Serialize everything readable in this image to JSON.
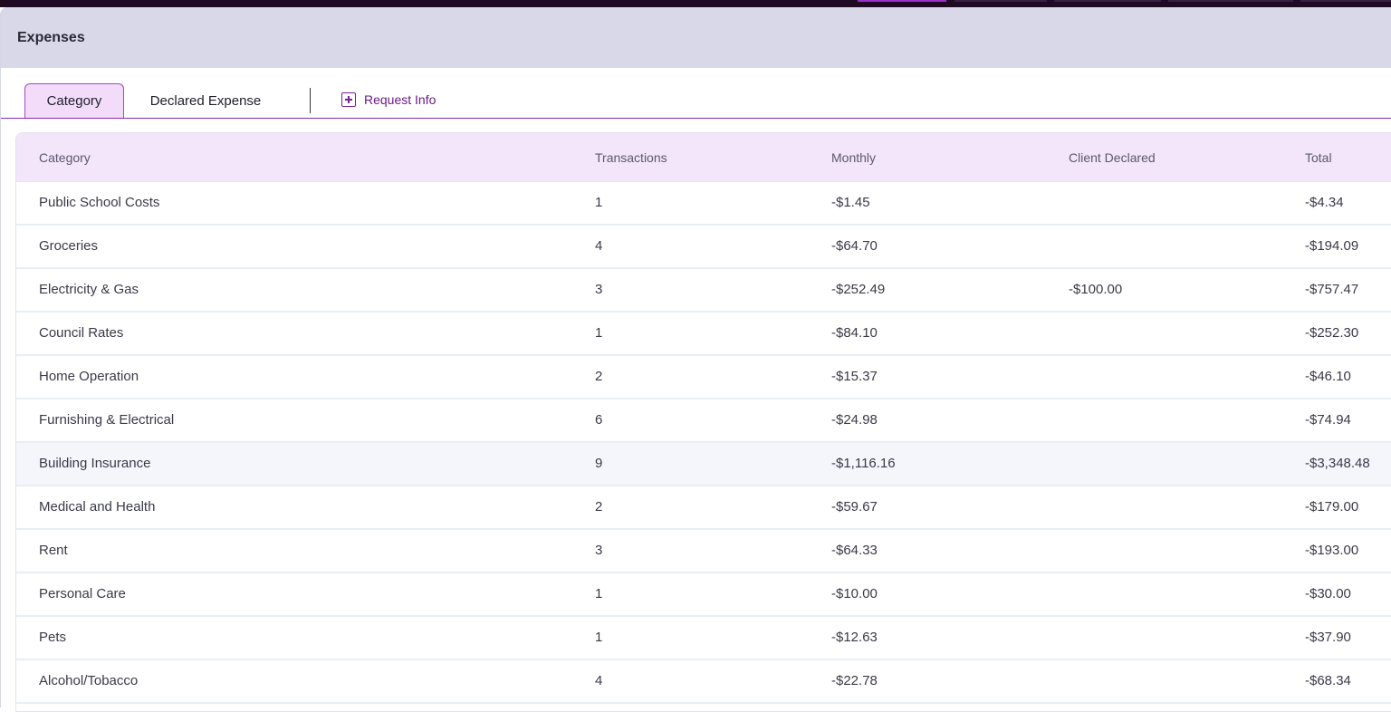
{
  "header": {
    "title": "Expenses"
  },
  "tabs": {
    "category": "Category",
    "declared": "Declared Expense",
    "request_info": "Request Info"
  },
  "table": {
    "columns": [
      "Category",
      "Transactions",
      "Monthly",
      "Client Declared",
      "Total"
    ],
    "rows": [
      [
        "Public School Costs",
        "1",
        "-$1.45",
        "",
        "-$4.34"
      ],
      [
        "Groceries",
        "4",
        "-$64.70",
        "",
        "-$194.09"
      ],
      [
        "Electricity & Gas",
        "3",
        "-$252.49",
        "-$100.00",
        "-$757.47"
      ],
      [
        "Council Rates",
        "1",
        "-$84.10",
        "",
        "-$252.30"
      ],
      [
        "Home Operation",
        "2",
        "-$15.37",
        "",
        "-$46.10"
      ],
      [
        "Furnishing & Electrical",
        "6",
        "-$24.98",
        "",
        "-$74.94"
      ],
      [
        "Building Insurance",
        "9",
        "-$1,116.16",
        "",
        "-$3,348.48"
      ],
      [
        "Medical and Health",
        "2",
        "-$59.67",
        "",
        "-$179.00"
      ],
      [
        "Rent",
        "3",
        "-$64.33",
        "",
        "-$193.00"
      ],
      [
        "Personal Care",
        "1",
        "-$10.00",
        "",
        "-$30.00"
      ],
      [
        "Pets",
        "1",
        "-$12.63",
        "",
        "-$37.90"
      ],
      [
        "Alcohol/Tobacco",
        "4",
        "-$22.78",
        "",
        "-$68.34"
      ]
    ],
    "highlighted_row": 6
  },
  "colors": {
    "accent": "#8a2aa5",
    "tab_active_bg": "#f2dcfa",
    "header_bg": "#d8d8e8",
    "table_header_bg": "#f3e5fa"
  }
}
